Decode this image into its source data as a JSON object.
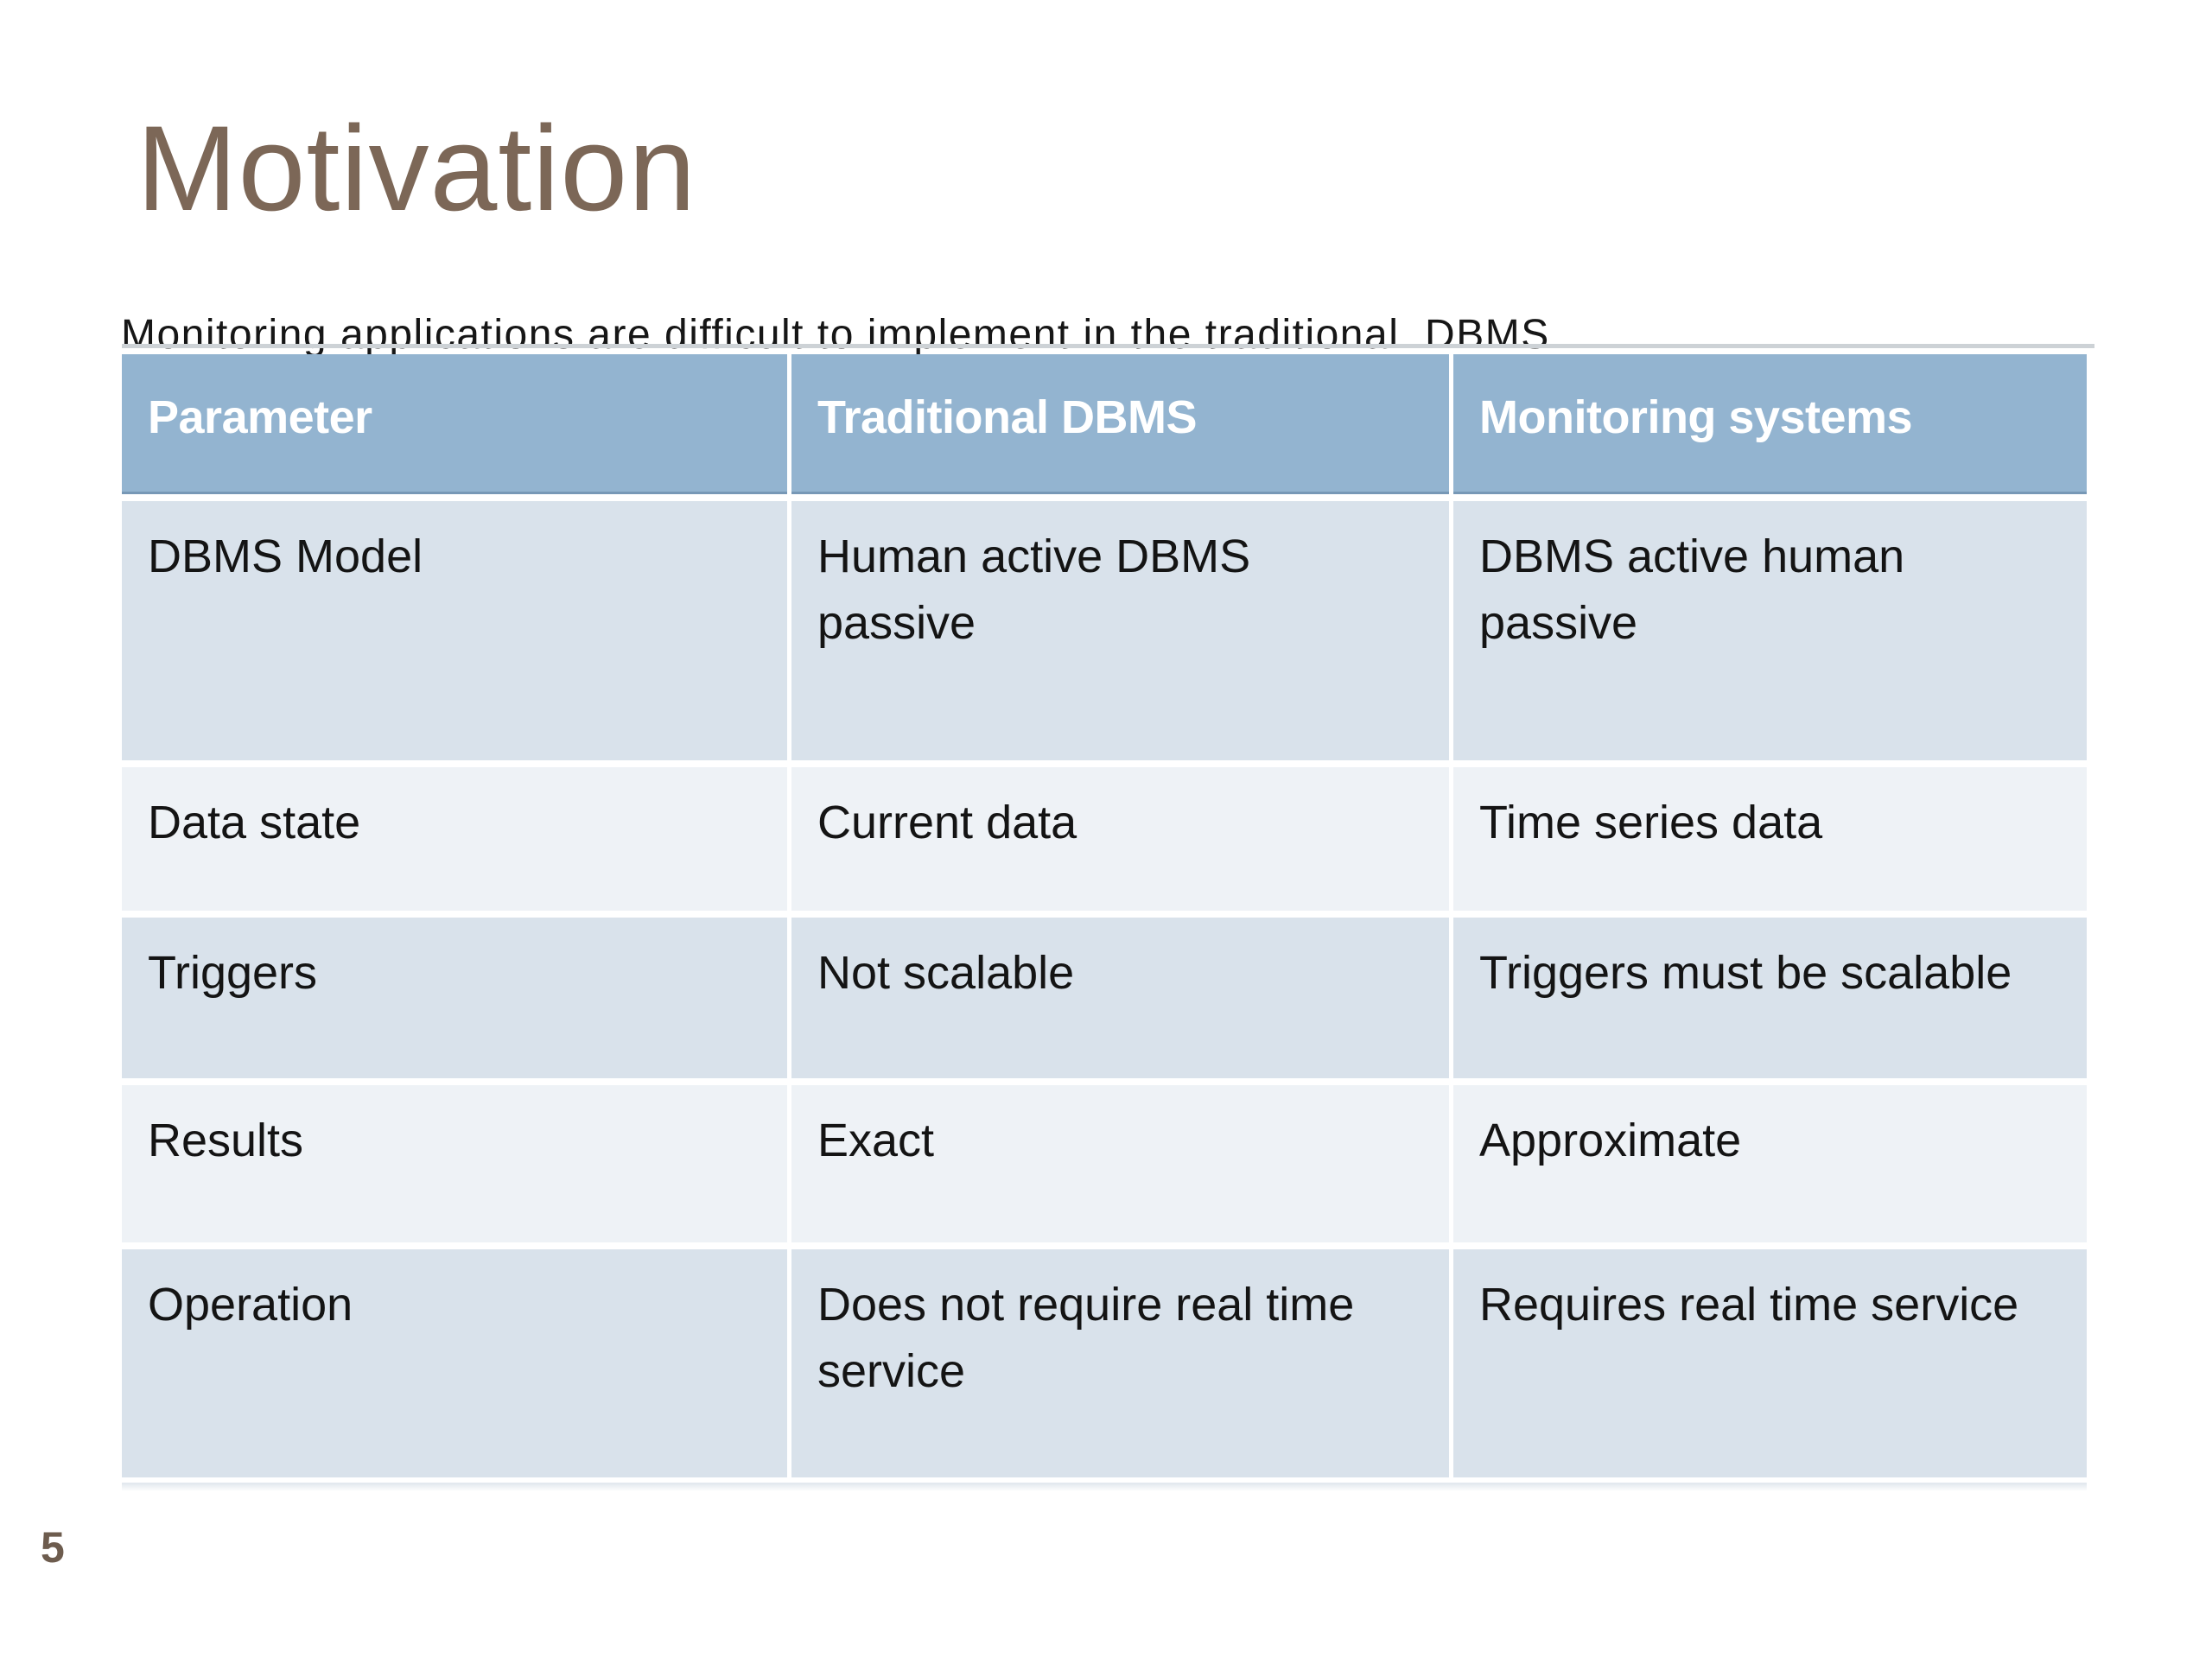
{
  "slide": {
    "title": "Motivation",
    "subtitle": "Monitoring applications are difficult to implement in the traditional  DBMS",
    "page_number": "5",
    "colors": {
      "title_color": "#7c6757",
      "header_bg": "#93b4d0",
      "header_text": "#ffffff",
      "row_odd_bg": "#d9e2eb",
      "row_even_bg": "#eef2f6",
      "body_text": "#141414",
      "rule_color": "#cdd2d6",
      "page_number_color": "#6d5c4e"
    },
    "table": {
      "columns": [
        "Parameter",
        "Traditional DBMS",
        "Monitoring systems"
      ],
      "rows": [
        [
          "DBMS Model",
          "Human active DBMS passive",
          "DBMS active human passive"
        ],
        [
          "Data state",
          "Current data",
          "Time series data"
        ],
        [
          "Triggers",
          "Not scalable",
          "Triggers must be scalable"
        ],
        [
          "Results",
          "Exact",
          "Approximate"
        ],
        [
          "Operation",
          "Does not require real time service",
          "Requires real time service"
        ]
      ]
    }
  }
}
